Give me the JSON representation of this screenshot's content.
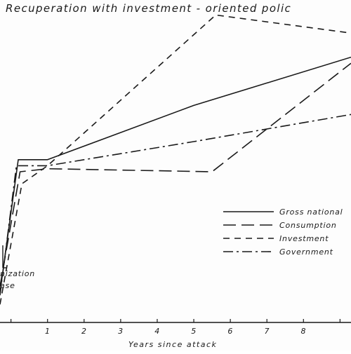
{
  "chart_data": {
    "type": "line",
    "title": "Recuperation with investment - oriented polic",
    "xlabel": "Years since attack",
    "ylabel": "",
    "x_ticks": [
      "1",
      "2",
      "3",
      "4",
      "5",
      "6",
      "7",
      "8"
    ],
    "xlim": [
      -0.3,
      9.3
    ],
    "ylim": [
      0,
      100
    ],
    "legend_position": "right",
    "annotation_lines": [
      "nization",
      "ase"
    ],
    "series": [
      {
        "name": "Gross national",
        "dash": "solid",
        "color": "#1a1a1a",
        "x": [
          -0.3,
          0.2,
          1.0,
          5.0,
          9.3
        ],
        "y": [
          10,
          54,
          54,
          72,
          88
        ]
      },
      {
        "name": "Consumption",
        "dash": "long",
        "color": "#1a1a1a",
        "x": [
          -0.3,
          0.25,
          1.0,
          5.5,
          9.3
        ],
        "y": [
          12,
          50,
          51,
          50,
          86
        ]
      },
      {
        "name": "Investment",
        "dash": "short",
        "color": "#1a1a1a",
        "x": [
          -0.3,
          0.3,
          1.0,
          5.6,
          9.3
        ],
        "y": [
          6,
          46,
          52,
          102,
          96
        ]
      },
      {
        "name": "Government",
        "dash": "dashdot",
        "color": "#1a1a1a",
        "x": [
          -0.3,
          0.15,
          1.0,
          5.0,
          9.3
        ],
        "y": [
          9,
          52,
          52,
          60,
          69
        ]
      }
    ]
  }
}
